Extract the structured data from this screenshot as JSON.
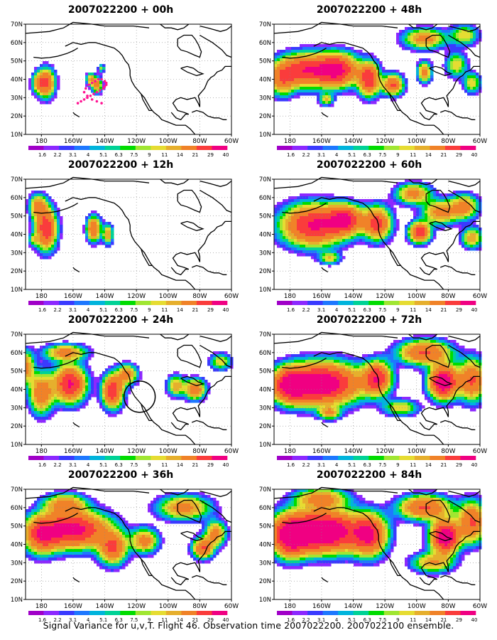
{
  "panels": [
    {
      "title": "2007022200 + 00h",
      "hour": 0
    },
    {
      "title": "2007022200 + 48h",
      "hour": 48
    },
    {
      "title": "2007022200 + 12h",
      "hour": 12
    },
    {
      "title": "2007022200 + 60h",
      "hour": 60
    },
    {
      "title": "2007022200 + 24h",
      "hour": 24
    },
    {
      "title": "2007022200 + 72h",
      "hour": 72
    },
    {
      "title": "2007022200 + 36h",
      "hour": 36
    },
    {
      "title": "2007022200 + 84h",
      "hour": 84
    }
  ],
  "map": {
    "lat_labels": [
      "70N",
      "60N",
      "50N",
      "40N",
      "30N",
      "20N",
      "10N"
    ],
    "lon_labels": [
      "180",
      "160W",
      "140W",
      "120W",
      "100W",
      "80W",
      "60W"
    ],
    "lat_range": [
      10,
      70
    ],
    "lon_range": [
      170,
      300
    ]
  },
  "colorbar": {
    "labels": [
      "1.6",
      "2.2",
      "3.1",
      "4",
      "5.1",
      "6.3",
      "7.5",
      "9",
      "11",
      "14",
      "21",
      "29",
      "40"
    ],
    "colors": [
      "#a000c8",
      "#8c28ff",
      "#3a3aff",
      "#1e78ff",
      "#00b4dc",
      "#00d296",
      "#00dc00",
      "#a0e632",
      "#e6dc32",
      "#e6af2d",
      "#f08228",
      "#fa3c3c",
      "#f00082"
    ]
  },
  "footer": "Signal Variance for u,v,T. Flight 46. Observation time 2007022200. 2007022100 ensemble."
}
